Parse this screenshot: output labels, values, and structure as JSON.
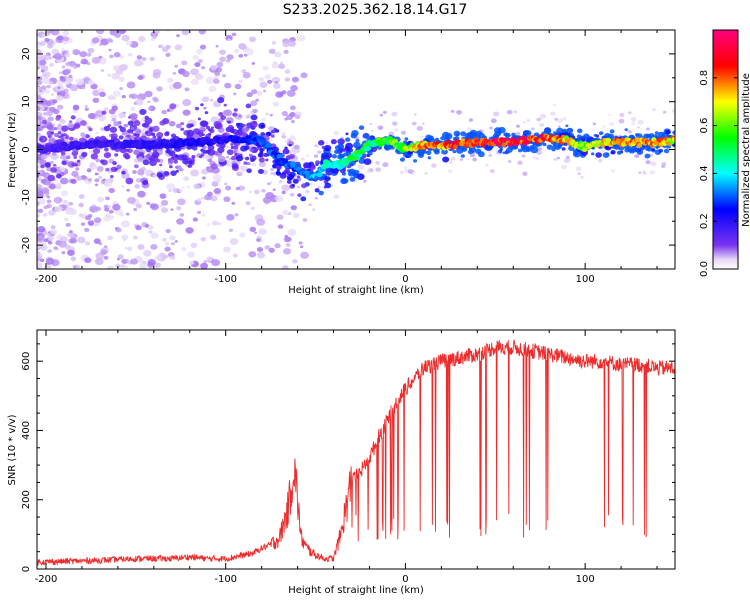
{
  "title": "S233.2025.362.18.14.G17",
  "colors": {
    "snr_line": "#ee2b2b",
    "spec_low": "#dcc7f2",
    "spec_core": "#5a1ee0"
  },
  "chart_data": [
    {
      "type": "heatmap",
      "title": "S233.2025.362.18.14.G17",
      "xlabel": "Height of straight line (km)",
      "ylabel": "Frequency (Hz)",
      "xlim": [
        -205,
        150
      ],
      "ylim": [
        -25,
        25
      ],
      "xticks": [
        -200,
        -100,
        0,
        100
      ],
      "yticks": [
        -20,
        -10,
        0,
        10,
        20
      ],
      "colorbar": {
        "label": "Normalized spectral amplitude",
        "range": [
          0,
          1
        ],
        "ticks": [
          "0.0",
          "0.2",
          "0.4",
          "0.6",
          "0.8"
        ],
        "colormap": [
          "#ffffff",
          "#e6d6f7",
          "#7a33f0",
          "#0000ff",
          "#00ffff",
          "#00ff00",
          "#ffff00",
          "#ff0000",
          "#ff0080"
        ]
      },
      "ridge": {
        "x": [
          -205,
          -180,
          -160,
          -140,
          -120,
          -100,
          -90,
          -80,
          -70,
          -60,
          -50,
          -45,
          -40,
          -35,
          -30,
          -20,
          -10,
          0,
          10,
          20,
          40,
          60,
          80,
          90,
          100,
          110,
          120,
          140,
          150
        ],
        "freq": [
          0,
          1,
          1,
          1,
          1.5,
          2,
          2,
          2,
          -2,
          -4,
          -6,
          -3,
          -3.5,
          -3,
          -2,
          1,
          2,
          0,
          1,
          0.8,
          1.5,
          1.5,
          2.5,
          2,
          0.5,
          1.5,
          1.5,
          1.5,
          2
        ],
        "amplitude": [
          0.15,
          0.18,
          0.18,
          0.2,
          0.22,
          0.2,
          0.25,
          0.28,
          0.3,
          0.3,
          0.35,
          0.4,
          0.45,
          0.45,
          0.5,
          0.5,
          0.55,
          0.6,
          0.75,
          0.8,
          0.85,
          0.9,
          0.8,
          0.7,
          0.6,
          0.7,
          0.75,
          0.75,
          0.7
        ]
      }
    },
    {
      "type": "line",
      "xlabel": "Height of straight line (km)",
      "ylabel": "SNR (10 * v/v)",
      "xlim": [
        -205,
        150
      ],
      "ylim": [
        0,
        690
      ],
      "xticks": [
        -200,
        -100,
        0,
        100
      ],
      "yticks": [
        0,
        200,
        400,
        600
      ],
      "series": [
        {
          "name": "SNR",
          "x": [
            -205,
            -190,
            -170,
            -150,
            -130,
            -120,
            -110,
            -100,
            -90,
            -85,
            -80,
            -75,
            -70,
            -65,
            -62,
            -60,
            -58,
            -55,
            -50,
            -45,
            -40,
            -36,
            -33,
            -30,
            -25,
            -20,
            -15,
            -10,
            -5,
            0,
            5,
            10,
            15,
            20,
            30,
            40,
            50,
            60,
            70,
            80,
            90,
            100,
            110,
            120,
            130,
            140,
            150
          ],
          "y": [
            20,
            22,
            25,
            30,
            30,
            35,
            30,
            30,
            40,
            45,
            60,
            70,
            90,
            180,
            300,
            200,
            90,
            60,
            40,
            30,
            30,
            100,
            180,
            250,
            280,
            320,
            380,
            430,
            480,
            520,
            550,
            580,
            590,
            600,
            610,
            620,
            640,
            640,
            630,
            620,
            610,
            600,
            600,
            590,
            590,
            580,
            580
          ]
        }
      ]
    }
  ]
}
